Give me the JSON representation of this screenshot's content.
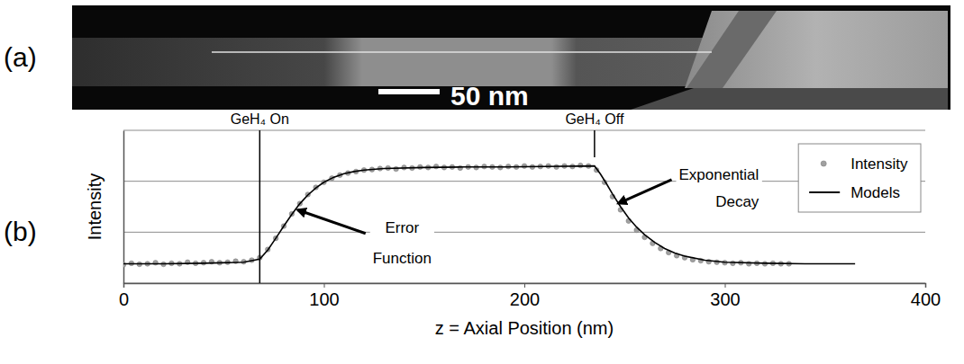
{
  "micrograph": {
    "panel_label": "(a)",
    "scale_bar_label": "50 nm"
  },
  "chart_data": {
    "type": "line",
    "panel_label": "(b)",
    "x_label": "z = Axial Position (nm)",
    "y_label": "Intensity",
    "xlim": [
      0,
      400
    ],
    "xticks": [
      0,
      100,
      200,
      300,
      400
    ],
    "ylim": [
      0,
      3
    ],
    "yticks": [
      0,
      1,
      2,
      3
    ],
    "grid": true,
    "tick_labels": "x",
    "legend": "top-right",
    "events": [
      {
        "text": "GeH₄ On",
        "x": 68
      },
      {
        "text": "GeH₄ Off",
        "x": 235
      }
    ],
    "annotations": [
      {
        "text": "Error Function",
        "x": 86,
        "y": 1.45
      },
      {
        "text": "Exponential Decay",
        "x": 246,
        "y": 1.55
      }
    ],
    "series": [
      {
        "name": "Intensity",
        "type": "scatter",
        "color": "#a0a0a0",
        "marker": "circle",
        "x": [
          0,
          4,
          8,
          12,
          16,
          20,
          24,
          28,
          32,
          36,
          40,
          44,
          48,
          52,
          56,
          60,
          64,
          68,
          72,
          76,
          80,
          84,
          88,
          92,
          96,
          100,
          104,
          108,
          112,
          116,
          120,
          124,
          128,
          132,
          136,
          140,
          144,
          148,
          152,
          156,
          160,
          164,
          168,
          172,
          176,
          180,
          184,
          188,
          192,
          196,
          200,
          204,
          208,
          212,
          216,
          220,
          224,
          228,
          232,
          236,
          240,
          244,
          248,
          252,
          256,
          260,
          264,
          268,
          272,
          276,
          280,
          284,
          288,
          292,
          296,
          300,
          304,
          308,
          312,
          316,
          320,
          324,
          328,
          332
        ],
        "values": [
          0.36,
          0.39,
          0.37,
          0.38,
          0.4,
          0.37,
          0.39,
          0.38,
          0.41,
          0.39,
          0.4,
          0.42,
          0.4,
          0.41,
          0.43,
          0.42,
          0.45,
          0.5,
          0.66,
          0.88,
          1.12,
          1.36,
          1.56,
          1.74,
          1.88,
          1.98,
          2.06,
          2.12,
          2.16,
          2.19,
          2.22,
          2.23,
          2.25,
          2.26,
          2.24,
          2.27,
          2.26,
          2.28,
          2.27,
          2.29,
          2.27,
          2.28,
          2.26,
          2.28,
          2.27,
          2.29,
          2.28,
          2.27,
          2.29,
          2.28,
          2.3,
          2.28,
          2.29,
          2.3,
          2.28,
          2.3,
          2.29,
          2.31,
          2.3,
          2.22,
          1.98,
          1.7,
          1.44,
          1.22,
          1.04,
          0.9,
          0.78,
          0.68,
          0.6,
          0.54,
          0.5,
          0.46,
          0.44,
          0.42,
          0.41,
          0.4,
          0.39,
          0.4,
          0.38,
          0.39,
          0.38,
          0.39,
          0.38,
          0.38
        ]
      },
      {
        "name": "Models",
        "type": "line",
        "color": "#000000",
        "line_style": "solid",
        "x": [
          0,
          20,
          40,
          60,
          68,
          72,
          76,
          80,
          84,
          88,
          92,
          96,
          100,
          105,
          110,
          115,
          120,
          130,
          150,
          170,
          190,
          210,
          235,
          238,
          241,
          244,
          248,
          252,
          256,
          260,
          265,
          270,
          275,
          280,
          290,
          300,
          320,
          340,
          365
        ],
        "values": [
          0.38,
          0.38,
          0.39,
          0.41,
          0.47,
          0.65,
          0.88,
          1.12,
          1.35,
          1.56,
          1.73,
          1.87,
          1.98,
          2.08,
          2.15,
          2.19,
          2.22,
          2.25,
          2.27,
          2.28,
          2.28,
          2.29,
          2.3,
          2.14,
          1.95,
          1.75,
          1.5,
          1.28,
          1.1,
          0.95,
          0.8,
          0.68,
          0.59,
          0.53,
          0.45,
          0.41,
          0.39,
          0.38,
          0.38
        ]
      }
    ]
  }
}
